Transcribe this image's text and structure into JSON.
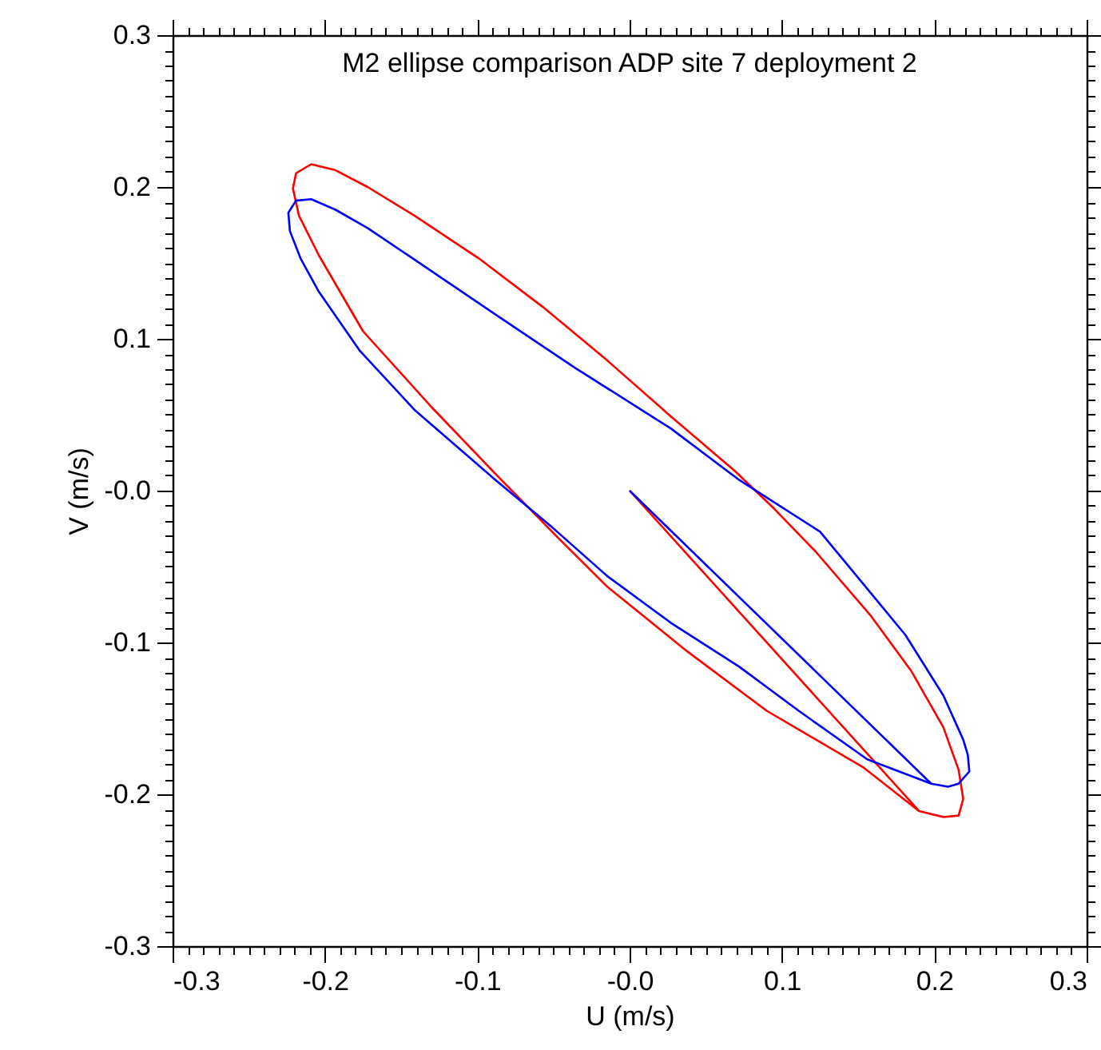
{
  "chart_data": {
    "type": "line",
    "title": "M2 ellipse comparison ADP site 7 deployment 2",
    "xlabel": "U (m/s)",
    "ylabel": "V (m/s)",
    "xlim": [
      -0.3,
      0.3
    ],
    "ylim": [
      -0.3,
      0.3
    ],
    "grid": false,
    "marker": "none",
    "line_style": "solid",
    "xticks": [
      -0.3,
      {
        "value": -0.29,
        "label": null
      },
      {
        "value": -0.28,
        "label": null
      },
      {
        "value": -0.27,
        "label": null
      },
      {
        "value": -0.26,
        "label": null
      },
      {
        "value": -0.25,
        "label": null
      },
      {
        "value": -0.24,
        "label": null
      },
      {
        "value": -0.23,
        "label": null
      },
      {
        "value": -0.22,
        "label": null
      },
      {
        "value": -0.21,
        "label": null
      },
      -0.2,
      {
        "value": -0.19,
        "label": null
      },
      {
        "value": -0.18,
        "label": null
      },
      {
        "value": -0.17,
        "label": null
      },
      {
        "value": -0.16,
        "label": null
      },
      {
        "value": -0.15,
        "label": null
      },
      {
        "value": -0.14,
        "label": null
      },
      {
        "value": -0.13,
        "label": null
      },
      {
        "value": -0.12,
        "label": null
      },
      {
        "value": -0.11,
        "label": null
      },
      -0.1,
      {
        "value": -0.09,
        "label": null
      },
      {
        "value": -0.08,
        "label": null
      },
      {
        "value": -0.07,
        "label": null
      },
      {
        "value": -0.06,
        "label": null
      },
      {
        "value": -0.05,
        "label": null
      },
      {
        "value": -0.04,
        "label": null
      },
      {
        "value": -0.03,
        "label": null
      },
      {
        "value": -0.02,
        "label": null
      },
      {
        "value": -0.01,
        "label": null
      },
      {
        "value": 0,
        "label": "-0.0"
      },
      {
        "value": 0.01,
        "label": null
      },
      {
        "value": 0.02,
        "label": null
      },
      {
        "value": 0.03,
        "label": null
      },
      {
        "value": 0.04,
        "label": null
      },
      {
        "value": 0.05,
        "label": null
      },
      {
        "value": 0.06,
        "label": null
      },
      {
        "value": 0.07,
        "label": null
      },
      {
        "value": 0.08,
        "label": null
      },
      {
        "value": 0.09,
        "label": null
      },
      0.1,
      {
        "value": 0.11,
        "label": null
      },
      {
        "value": 0.12,
        "label": null
      },
      {
        "value": 0.13,
        "label": null
      },
      {
        "value": 0.14,
        "label": null
      },
      {
        "value": 0.15,
        "label": null
      },
      {
        "value": 0.16,
        "label": null
      },
      {
        "value": 0.17,
        "label": null
      },
      {
        "value": 0.18,
        "label": null
      },
      {
        "value": 0.19,
        "label": null
      },
      0.2,
      {
        "value": 0.21,
        "label": null
      },
      {
        "value": 0.22,
        "label": null
      },
      {
        "value": 0.23,
        "label": null
      },
      {
        "value": 0.24,
        "label": null
      },
      {
        "value": 0.25,
        "label": null
      },
      {
        "value": 0.26,
        "label": null
      },
      {
        "value": 0.27,
        "label": null
      },
      {
        "value": 0.28,
        "label": null
      },
      {
        "value": 0.29,
        "label": null
      },
      0.3
    ],
    "yticks": [
      -0.3,
      {
        "value": -0.29,
        "label": null
      },
      {
        "value": -0.28,
        "label": null
      },
      {
        "value": -0.27,
        "label": null
      },
      {
        "value": -0.26,
        "label": null
      },
      {
        "value": -0.25,
        "label": null
      },
      {
        "value": -0.24,
        "label": null
      },
      {
        "value": -0.23,
        "label": null
      },
      {
        "value": -0.22,
        "label": null
      },
      {
        "value": -0.21,
        "label": null
      },
      -0.2,
      {
        "value": -0.19,
        "label": null
      },
      {
        "value": -0.18,
        "label": null
      },
      {
        "value": -0.17,
        "label": null
      },
      {
        "value": -0.16,
        "label": null
      },
      {
        "value": -0.15,
        "label": null
      },
      {
        "value": -0.14,
        "label": null
      },
      {
        "value": -0.13,
        "label": null
      },
      {
        "value": -0.12,
        "label": null
      },
      {
        "value": -0.11,
        "label": null
      },
      -0.1,
      {
        "value": -0.09,
        "label": null
      },
      {
        "value": -0.08,
        "label": null
      },
      {
        "value": -0.07,
        "label": null
      },
      {
        "value": -0.06,
        "label": null
      },
      {
        "value": -0.05,
        "label": null
      },
      {
        "value": -0.04,
        "label": null
      },
      {
        "value": -0.03,
        "label": null
      },
      {
        "value": -0.02,
        "label": null
      },
      {
        "value": -0.01,
        "label": null
      },
      {
        "value": 0,
        "label": "-0.0"
      },
      {
        "value": 0.01,
        "label": null
      },
      {
        "value": 0.02,
        "label": null
      },
      {
        "value": 0.03,
        "label": null
      },
      {
        "value": 0.04,
        "label": null
      },
      {
        "value": 0.05,
        "label": null
      },
      {
        "value": 0.06,
        "label": null
      },
      {
        "value": 0.07,
        "label": null
      },
      {
        "value": 0.08,
        "label": null
      },
      {
        "value": 0.09,
        "label": null
      },
      0.1,
      {
        "value": 0.11,
        "label": null
      },
      {
        "value": 0.12,
        "label": null
      },
      {
        "value": 0.13,
        "label": null
      },
      {
        "value": 0.14,
        "label": null
      },
      {
        "value": 0.15,
        "label": null
      },
      {
        "value": 0.16,
        "label": null
      },
      {
        "value": 0.17,
        "label": null
      },
      {
        "value": 0.18,
        "label": null
      },
      {
        "value": 0.19,
        "label": null
      },
      0.2,
      {
        "value": 0.21,
        "label": null
      },
      {
        "value": 0.22,
        "label": null
      },
      {
        "value": 0.23,
        "label": null
      },
      {
        "value": 0.24,
        "label": null
      },
      {
        "value": 0.25,
        "label": null
      },
      {
        "value": 0.26,
        "label": null
      },
      {
        "value": 0.27,
        "label": null
      },
      {
        "value": 0.28,
        "label": null
      },
      {
        "value": 0.29,
        "label": null
      },
      0.3
    ],
    "series": [
      {
        "color": "#ff0000",
        "x": [
          0,
          0.19,
          0.206,
          0.216,
          0.219,
          0.216,
          0.206,
          0.185,
          0.158,
          0.122,
          0.095,
          0.069,
          0.027,
          -0.015,
          -0.057,
          -0.099,
          -0.141,
          -0.172,
          -0.193,
          -0.209,
          -0.219,
          -0.221,
          -0.217,
          -0.204,
          -0.175,
          -0.13,
          -0.088,
          -0.046,
          -0.015,
          0.038,
          0.09,
          0.153,
          0.19
        ],
        "values": [
          0,
          -0.211,
          -0.215,
          -0.214,
          -0.203,
          -0.184,
          -0.156,
          -0.119,
          -0.082,
          -0.04,
          -0.012,
          0.013,
          0.049,
          0.086,
          0.121,
          0.153,
          0.181,
          0.2,
          0.211,
          0.215,
          0.209,
          0.199,
          0.181,
          0.155,
          0.105,
          0.055,
          0.011,
          -0.032,
          -0.063,
          -0.106,
          -0.145,
          -0.182,
          -0.211
        ]
      },
      {
        "color": "#0000ff",
        "x": [
          0,
          0.198,
          0.209,
          0.216,
          0.223,
          0.222,
          0.219,
          0.206,
          0.181,
          0.153,
          0.125,
          0.072,
          0.027,
          -0.036,
          -0.088,
          -0.141,
          -0.172,
          -0.193,
          -0.209,
          -0.219,
          -0.224,
          -0.223,
          -0.216,
          -0.204,
          -0.177,
          -0.141,
          -0.088,
          -0.051,
          -0.015,
          0.027,
          0.072,
          0.111,
          0.156,
          0.198
        ],
        "values": [
          0,
          -0.193,
          -0.195,
          -0.193,
          -0.185,
          -0.174,
          -0.164,
          -0.135,
          -0.095,
          -0.061,
          -0.027,
          0.007,
          0.041,
          0.081,
          0.116,
          0.152,
          0.173,
          0.185,
          0.192,
          0.191,
          0.183,
          0.171,
          0.153,
          0.131,
          0.092,
          0.053,
          0.007,
          -0.024,
          -0.056,
          -0.087,
          -0.116,
          -0.145,
          -0.177,
          -0.193
        ]
      }
    ]
  }
}
